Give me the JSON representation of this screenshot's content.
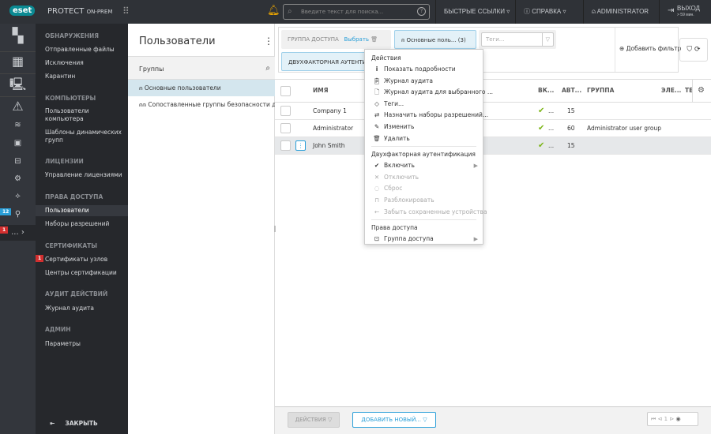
{
  "topbar": {
    "logo": "eset",
    "product": "PROTECT",
    "product_suffix": "ON-PREM",
    "search_placeholder": "Введите текст для поиска...",
    "quick_links": "БЫСТРЫЕ ССЫЛКИ",
    "help": "СПРАВКА",
    "user": "ADMINISTRATOR",
    "logout": "ВЫХОД",
    "logout_time": "> 59 мин."
  },
  "rail": {
    "badges": {
      "tasks": "12",
      "more": "1"
    },
    "more": "..."
  },
  "nav": {
    "sections": [
      {
        "title": "ОБНАРУЖЕНИЯ",
        "items": [
          "Отправленные файлы",
          "Исключения",
          "Карантин"
        ]
      },
      {
        "title": "КОМПЬЮТЕРЫ",
        "items": [
          "Пользователи компьютера",
          "Шаблоны динамических групп"
        ]
      },
      {
        "title": "ЛИЦЕНЗИИ",
        "items": [
          "Управление лицензиями"
        ]
      },
      {
        "title": "ПРАВА ДОСТУПА",
        "items": [
          "Пользователи",
          "Наборы разрешений"
        ]
      },
      {
        "title": "СЕРТИФИКАТЫ",
        "items": [
          "Сертификаты узлов",
          "Центры сертификации"
        ]
      },
      {
        "title": "АУДИТ ДЕЙСТВИЙ",
        "items": [
          "Журнал аудита"
        ]
      },
      {
        "title": "АДМИН",
        "items": [
          "Параметры"
        ]
      }
    ],
    "cert_badge": "1",
    "collapse": "ЗАКРЫТЬ",
    "active": "Пользователи"
  },
  "groups": {
    "title": "Пользователи",
    "label": "Группы",
    "items": [
      "Основные пользователи",
      "Сопоставленные группы безопасности дом..."
    ]
  },
  "filters": {
    "access_group_label": "ГРУППА ДОСТУПА",
    "select": "Выбрать",
    "group_chip": "Основные поль... (3)",
    "tags_placeholder": "Теги...",
    "twofa": "ДВУХФАКТОРНАЯ АУТЕНТИФИКАЦИЯ",
    "add_filter": "Добавить фильтр"
  },
  "table": {
    "columns": [
      "ИМЯ",
      "ВК...",
      "АВТ...",
      "ГРУППА",
      "ЭЛЕ...",
      "ТЕ"
    ],
    "rows": [
      {
        "name": "Company 1",
        "enabled": "...",
        "auto": "15",
        "group": ""
      },
      {
        "name": "Administrator",
        "enabled": "...",
        "auto": "60",
        "group": "Administrator user group"
      },
      {
        "name": "John Smith",
        "enabled": "...",
        "auto": "15",
        "group": ""
      }
    ],
    "selected_row": 2
  },
  "menu": {
    "actions_header": "Действия",
    "actions": [
      "Показать подробности",
      "Журнал аудита",
      "Журнал аудита для выбранного ...",
      "Теги...",
      "Назначить наборы разрешений...",
      "Изменить",
      "Удалить"
    ],
    "twofa_header": "Двухфакторная аутентификация",
    "twofa": [
      "Включить",
      "Отключить",
      "Сброс",
      "Разблокировать",
      "Забыть сохраненные устройства"
    ],
    "access_header": "Права доступа",
    "access": [
      "Группа доступа"
    ]
  },
  "bottom": {
    "actions": "ДЕЙСТВИЯ",
    "add_new": "ДОБАВИТЬ НОВЫЙ...",
    "page": "1"
  },
  "colors": {
    "accent": "#0b8a93",
    "link": "#2a9fd8",
    "check": "#7cb518",
    "badge_red": "#d32f2f",
    "badge_blue": "#2a9fd8"
  }
}
